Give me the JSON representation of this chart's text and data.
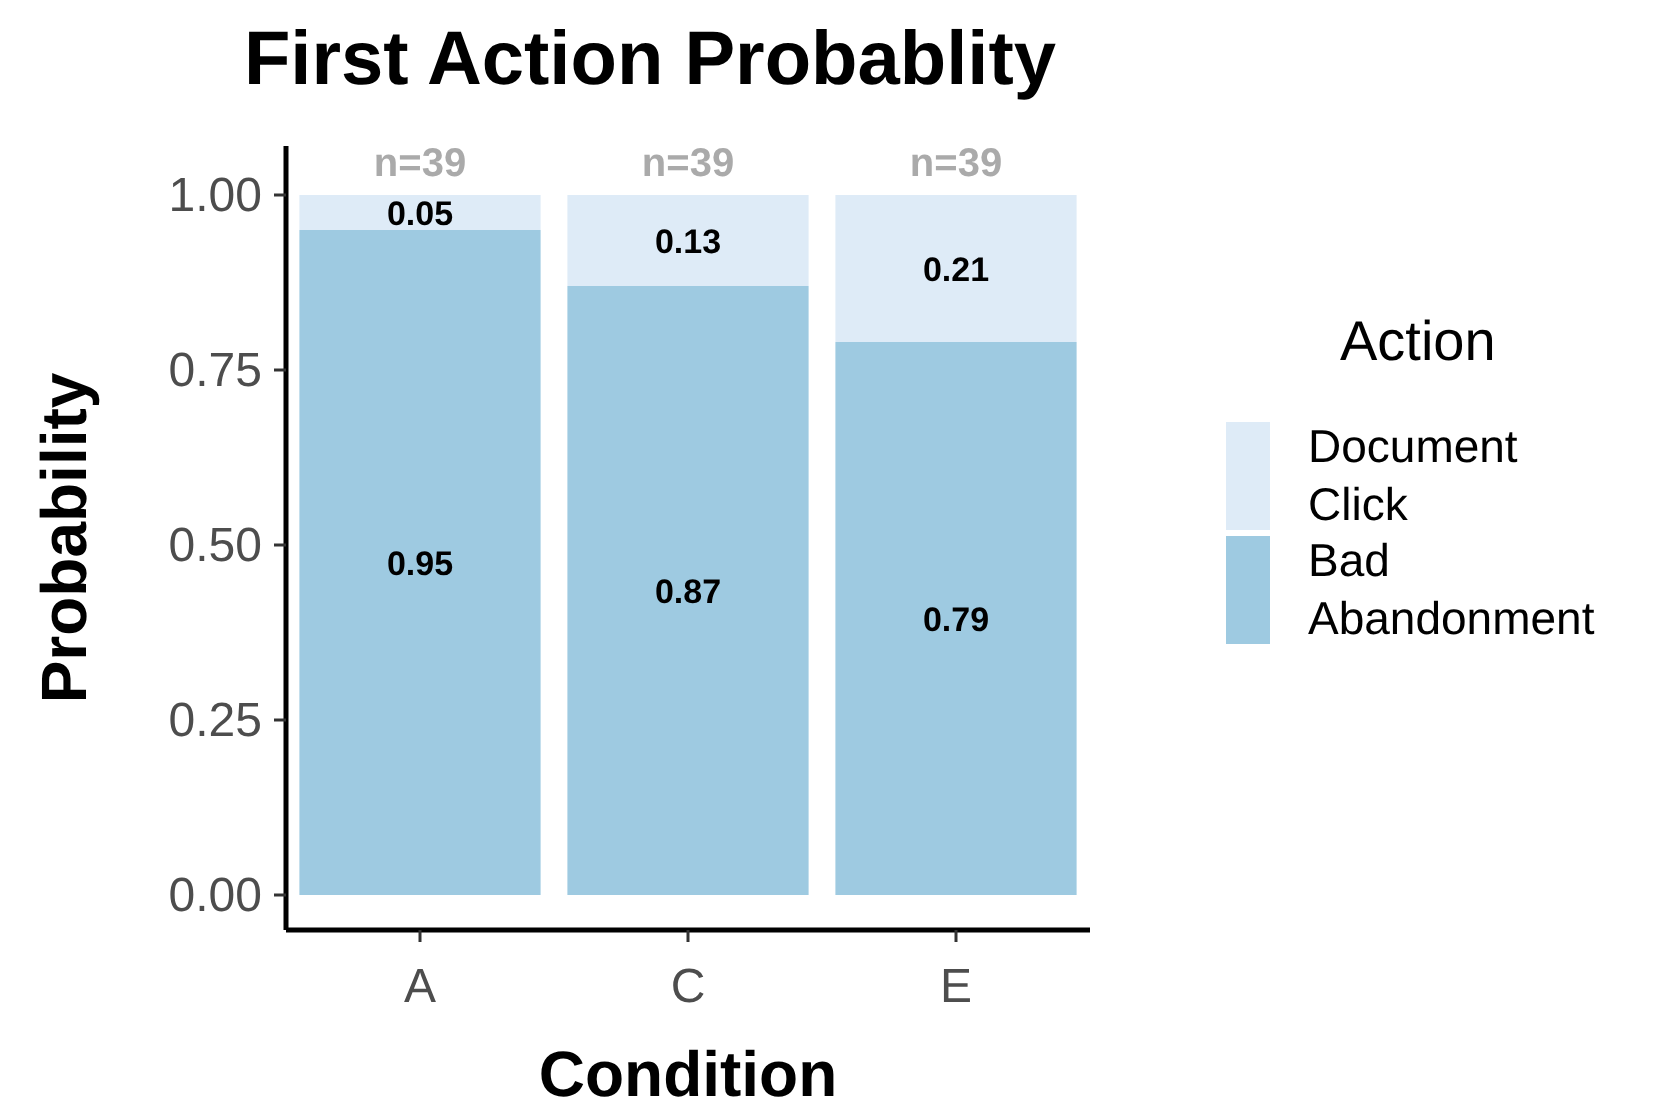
{
  "chart_data": {
    "type": "bar",
    "title": "First Action Probablity",
    "xlabel": "Condition",
    "ylabel": "Probability",
    "legend_title": "Action",
    "categories": [
      "A",
      "C",
      "E"
    ],
    "stacked": true,
    "series": [
      {
        "name": "Bad Abandonment",
        "color": "#9ecae1",
        "values": [
          0.95,
          0.87,
          0.79
        ]
      },
      {
        "name": "Document Click",
        "color": "#deebf7",
        "values": [
          0.05,
          0.13,
          0.21
        ]
      }
    ],
    "ylim": [
      -0.05,
      1.07
    ],
    "yticks": [
      {
        "value": 0,
        "label": "0.00"
      },
      {
        "value": 0.25,
        "label": "0.25"
      },
      {
        "value": 0.5,
        "label": "0.50"
      },
      {
        "value": 0.75,
        "label": "0.75"
      },
      {
        "value": 1,
        "label": "1.00"
      }
    ],
    "data_labels": true,
    "grid": false,
    "legend": "right",
    "annotations": [
      "n=39",
      "n=39",
      "n=39"
    ]
  }
}
